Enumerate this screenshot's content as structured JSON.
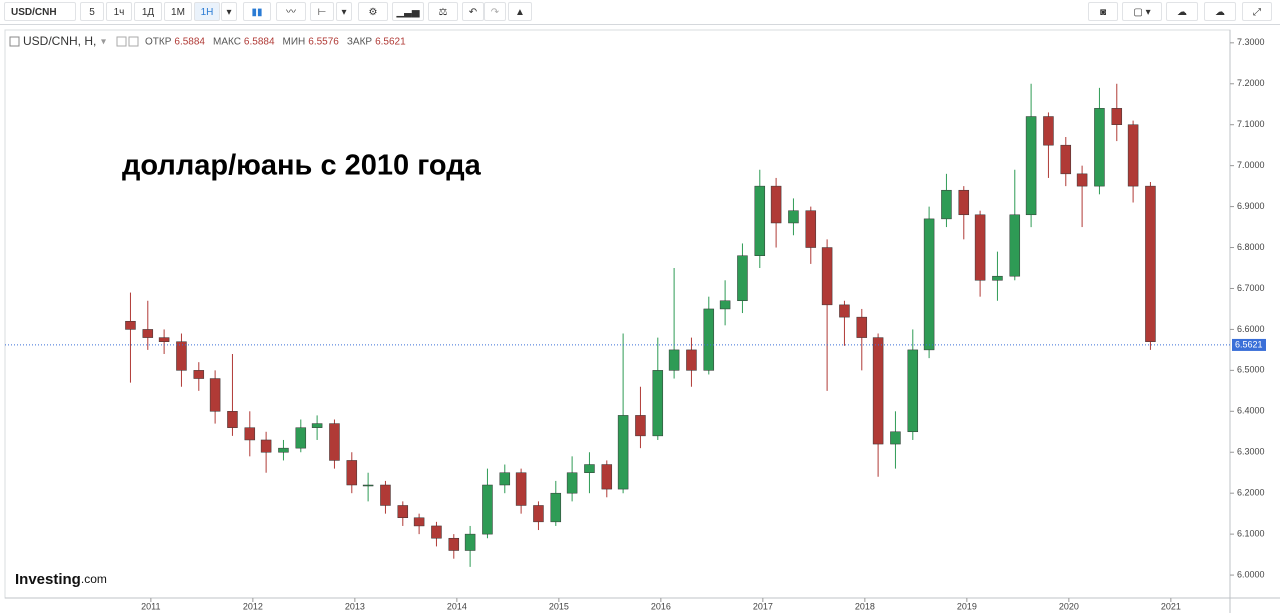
{
  "toolbar": {
    "symbol": "USD/CNH",
    "intervals": [
      "5",
      "1ч",
      "1Д",
      "1М",
      "1Н"
    ]
  },
  "header": {
    "series": "USD/CNH, H,",
    "fields": [
      {
        "label": "ОТКР",
        "value": 6.5884
      },
      {
        "label": "МАКС",
        "value": 6.5884
      },
      {
        "label": "МИН",
        "value": 6.5576
      },
      {
        "label": "ЗАКР",
        "value": 6.5621
      }
    ]
  },
  "logo": {
    "name": "Investing",
    "suffix": ".com"
  },
  "chart_data": {
    "type": "candlestick",
    "annotation": "доллар/юань с 2010 года",
    "up_color": "#2e9b55",
    "down_color": "#b03a36",
    "x": [
      2010.8,
      2010.97,
      2011.13,
      2011.3,
      2011.47,
      2011.63,
      2011.8,
      2011.97,
      2012.13,
      2012.3,
      2012.47,
      2012.63,
      2012.8,
      2012.97,
      2013.13,
      2013.3,
      2013.47,
      2013.63,
      2013.8,
      2013.97,
      2014.13,
      2014.3,
      2014.47,
      2014.63,
      2014.8,
      2014.97,
      2015.13,
      2015.3,
      2015.47,
      2015.63,
      2015.8,
      2015.97,
      2016.13,
      2016.3,
      2016.47,
      2016.63,
      2016.8,
      2016.97,
      2017.13,
      2017.3,
      2017.47,
      2017.63,
      2017.8,
      2017.97,
      2018.13,
      2018.3,
      2018.47,
      2018.63,
      2018.8,
      2018.97,
      2019.13,
      2019.3,
      2019.47,
      2019.63,
      2019.8,
      2019.97,
      2020.13,
      2020.3,
      2020.47,
      2020.63,
      2020.8
    ],
    "open": [
      6.62,
      6.6,
      6.58,
      6.57,
      6.5,
      6.48,
      6.4,
      6.36,
      6.33,
      6.3,
      6.31,
      6.36,
      6.37,
      6.28,
      6.22,
      6.22,
      6.17,
      6.14,
      6.12,
      6.09,
      6.06,
      6.1,
      6.22,
      6.25,
      6.17,
      6.13,
      6.2,
      6.25,
      6.27,
      6.21,
      6.39,
      6.34,
      6.5,
      6.55,
      6.5,
      6.65,
      6.67,
      6.78,
      6.95,
      6.86,
      6.89,
      6.8,
      6.66,
      6.63,
      6.58,
      6.32,
      6.35,
      6.55,
      6.87,
      6.94,
      6.88,
      6.72,
      6.73,
      6.88,
      7.12,
      7.05,
      6.98,
      6.95,
      7.14,
      7.1,
      6.95
    ],
    "high": [
      6.69,
      6.67,
      6.6,
      6.59,
      6.52,
      6.5,
      6.54,
      6.4,
      6.35,
      6.33,
      6.38,
      6.39,
      6.38,
      6.3,
      6.25,
      6.23,
      6.18,
      6.15,
      6.13,
      6.1,
      6.12,
      6.26,
      6.27,
      6.26,
      6.18,
      6.23,
      6.29,
      6.3,
      6.28,
      6.59,
      6.46,
      6.58,
      6.75,
      6.58,
      6.68,
      6.72,
      6.81,
      6.99,
      6.97,
      6.92,
      6.9,
      6.82,
      6.67,
      6.65,
      6.59,
      6.4,
      6.6,
      6.9,
      6.98,
      6.95,
      6.89,
      6.79,
      6.99,
      7.2,
      7.13,
      7.07,
      7.0,
      7.19,
      7.2,
      7.11,
      6.96
    ],
    "low": [
      6.47,
      6.55,
      6.54,
      6.46,
      6.45,
      6.37,
      6.34,
      6.29,
      6.25,
      6.28,
      6.3,
      6.33,
      6.26,
      6.2,
      6.18,
      6.15,
      6.12,
      6.1,
      6.07,
      6.04,
      6.02,
      6.09,
      6.2,
      6.15,
      6.11,
      6.12,
      6.18,
      6.2,
      6.19,
      6.2,
      6.31,
      6.33,
      6.48,
      6.46,
      6.49,
      6.61,
      6.64,
      6.75,
      6.8,
      6.83,
      6.76,
      6.45,
      6.56,
      6.5,
      6.24,
      6.26,
      6.33,
      6.53,
      6.85,
      6.82,
      6.68,
      6.67,
      6.72,
      6.85,
      6.97,
      6.95,
      6.85,
      6.93,
      7.06,
      6.91,
      6.55
    ],
    "close": [
      6.6,
      6.58,
      6.57,
      6.5,
      6.48,
      6.4,
      6.36,
      6.33,
      6.3,
      6.31,
      6.36,
      6.37,
      6.28,
      6.22,
      6.22,
      6.17,
      6.14,
      6.12,
      6.09,
      6.06,
      6.1,
      6.22,
      6.25,
      6.17,
      6.13,
      6.2,
      6.25,
      6.27,
      6.21,
      6.39,
      6.34,
      6.5,
      6.55,
      6.5,
      6.65,
      6.67,
      6.78,
      6.95,
      6.86,
      6.89,
      6.8,
      6.66,
      6.63,
      6.58,
      6.32,
      6.35,
      6.55,
      6.87,
      6.94,
      6.88,
      6.72,
      6.73,
      6.88,
      7.12,
      7.05,
      6.98,
      6.95,
      7.14,
      7.1,
      6.95,
      6.57
    ],
    "last_price": 6.5621,
    "last_price_color": "#3a6fd8",
    "xlim": [
      2009.57,
      2021.58
    ],
    "xticks": [
      2011,
      2012,
      2013,
      2014,
      2015,
      2016,
      2017,
      2018,
      2019,
      2020,
      2021
    ],
    "ylim": [
      5.944,
      7.324
    ],
    "yticks": [
      {
        "value": 7.3,
        "label": "7.3000"
      },
      {
        "value": 7.2,
        "label": "7.2000"
      },
      {
        "value": 7.1,
        "label": "7.1000"
      },
      {
        "value": 7.0,
        "label": "7.0000"
      },
      {
        "value": 6.9,
        "label": "6.9000"
      },
      {
        "value": 6.8,
        "label": "6.8000"
      },
      {
        "value": 6.7,
        "label": "6.7000"
      },
      {
        "value": 6.6,
        "label": "6.6000"
      },
      {
        "value": 6.5,
        "label": "6.5000"
      },
      {
        "value": 6.4,
        "label": "6.4000"
      },
      {
        "value": 6.3,
        "label": "6.3000"
      },
      {
        "value": 6.2,
        "label": "6.2000"
      },
      {
        "value": 6.1,
        "label": "6.1000"
      },
      {
        "value": 6.0,
        "label": "6.0000"
      }
    ],
    "grid": false
  }
}
